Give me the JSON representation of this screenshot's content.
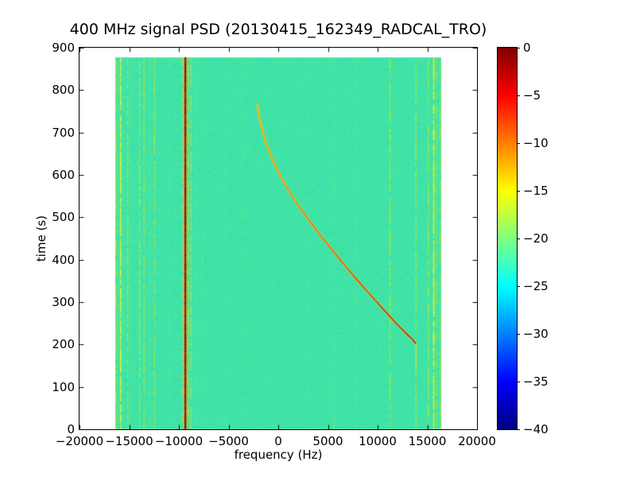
{
  "chart_data": {
    "type": "heatmap",
    "title": "400 MHz signal PSD (20130415_162349_RADCAL_TRO)",
    "xlabel": "frequency (Hz)",
    "ylabel": "time (s)",
    "x_range": [
      -20000,
      20000
    ],
    "y_range": [
      0,
      900
    ],
    "x_ticks": [
      -20000,
      -15000,
      -10000,
      -5000,
      0,
      5000,
      10000,
      15000,
      20000
    ],
    "x_tick_labels": [
      "−20000",
      "−15000",
      "−10000",
      "−5000",
      "0",
      "5000",
      "10000",
      "15000",
      "20000"
    ],
    "y_ticks": [
      0,
      100,
      200,
      300,
      400,
      500,
      600,
      700,
      800,
      900
    ],
    "y_tick_labels": [
      "0",
      "100",
      "200",
      "300",
      "400",
      "500",
      "600",
      "700",
      "800",
      "900"
    ],
    "grid": false,
    "colorbar": {
      "colormap": "jet",
      "max": 0,
      "min": -40,
      "ticks": [
        0,
        -5,
        -10,
        -15,
        -20,
        -25,
        -30,
        -35,
        -40
      ],
      "tick_labels": [
        "0",
        "−5",
        "−10",
        "−15",
        "−20",
        "−25",
        "−30",
        "−35",
        "−40"
      ],
      "gradient": [
        [
          "0%",
          "#7f0000"
        ],
        [
          "12.5%",
          "#ff0000"
        ],
        [
          "37.5%",
          "#ffff00"
        ],
        [
          "62.5%",
          "#00ffff"
        ],
        [
          "87.5%",
          "#0000ff"
        ],
        [
          "100%",
          "#00007f"
        ]
      ]
    },
    "data_extent": {
      "f": [
        -16400,
        16400
      ],
      "t": [
        0,
        877
      ]
    },
    "background_value_db": -23,
    "colors": {
      "background": "#3fe3a7",
      "carrier_core": "#c00d00",
      "carrier_fringe": "rgba(255,170,0,0.45)",
      "stripe_types": {
        "bright": {
          "color": "#e0ee2e",
          "density": 0.8,
          "alpha_min": 0.45,
          "alpha_max": 0.95
        },
        "medium": {
          "color": "#b4e83a",
          "density": 0.62,
          "alpha_min": 0.3,
          "alpha_max": 0.75
        },
        "faint": {
          "color": "#82ea74",
          "density": 0.45,
          "alpha_min": 0.18,
          "alpha_max": 0.45
        }
      }
    },
    "carrier": {
      "freq": -9350,
      "width_hz": 180
    },
    "stripes": [
      {
        "freq": -16320,
        "width_hz": 120,
        "type": "medium"
      },
      {
        "freq": -16080,
        "width_hz": 100,
        "type": "faint"
      },
      {
        "freq": -15850,
        "width_hz": 150,
        "type": "bright"
      },
      {
        "freq": -15550,
        "width_hz": 100,
        "type": "faint"
      },
      {
        "freq": -15150,
        "width_hz": 130,
        "type": "medium"
      },
      {
        "freq": -14750,
        "width_hz": 100,
        "type": "faint"
      },
      {
        "freq": -13950,
        "width_hz": 130,
        "type": "medium"
      },
      {
        "freq": -13500,
        "width_hz": 120,
        "type": "medium"
      },
      {
        "freq": -12900,
        "width_hz": 100,
        "type": "faint"
      },
      {
        "freq": -12450,
        "width_hz": 130,
        "type": "medium"
      },
      {
        "freq": -11000,
        "width_hz": 90,
        "type": "faint"
      },
      {
        "freq": -8800,
        "width_hz": 130,
        "type": "medium"
      },
      {
        "freq": -8300,
        "width_hz": 90,
        "type": "faint"
      },
      {
        "freq": -7600,
        "width_hz": 80,
        "type": "faint"
      },
      {
        "freq": -5300,
        "width_hz": 90,
        "type": "faint"
      },
      {
        "freq": -3600,
        "width_hz": 80,
        "type": "faint"
      },
      {
        "freq": 2900,
        "width_hz": 80,
        "type": "faint"
      },
      {
        "freq": 5600,
        "width_hz": 100,
        "type": "faint"
      },
      {
        "freq": 7800,
        "width_hz": 80,
        "type": "faint"
      },
      {
        "freq": 11250,
        "width_hz": 140,
        "type": "medium"
      },
      {
        "freq": 13850,
        "width_hz": 130,
        "type": "medium"
      },
      {
        "freq": 15100,
        "width_hz": 130,
        "type": "medium"
      },
      {
        "freq": 15650,
        "width_hz": 150,
        "type": "bright"
      },
      {
        "freq": 15950,
        "width_hz": 100,
        "type": "medium"
      },
      {
        "freq": 16300,
        "width_hz": 120,
        "type": "medium"
      }
    ],
    "doppler_track": {
      "color_start": "#ffb300",
      "color_end": "#cc1500",
      "points": [
        [
          -2080,
          765
        ],
        [
          -1980,
          748
        ],
        [
          -1850,
          731
        ],
        [
          -1690,
          714
        ],
        [
          -1500,
          697
        ],
        [
          -1280,
          680
        ],
        [
          -1030,
          663
        ],
        [
          -750,
          646
        ],
        [
          -440,
          629
        ],
        [
          -100,
          612
        ],
        [
          270,
          595
        ],
        [
          670,
          578
        ],
        [
          1100,
          561
        ],
        [
          1560,
          544
        ],
        [
          2050,
          527
        ],
        [
          2560,
          510
        ],
        [
          3090,
          493
        ],
        [
          3640,
          476
        ],
        [
          4200,
          459
        ],
        [
          4770,
          442
        ],
        [
          5350,
          425
        ],
        [
          5940,
          408
        ],
        [
          6540,
          391
        ],
        [
          7150,
          374
        ],
        [
          7770,
          357
        ],
        [
          8400,
          340
        ],
        [
          9040,
          323
        ],
        [
          9690,
          306
        ],
        [
          10350,
          289
        ],
        [
          11010,
          272
        ],
        [
          11660,
          255
        ],
        [
          12280,
          240
        ],
        [
          12840,
          227
        ],
        [
          13290,
          217
        ],
        [
          13620,
          209
        ],
        [
          13820,
          203
        ]
      ],
      "tail": {
        "freq": 13830,
        "t_range": [
          152,
          200
        ]
      }
    }
  }
}
